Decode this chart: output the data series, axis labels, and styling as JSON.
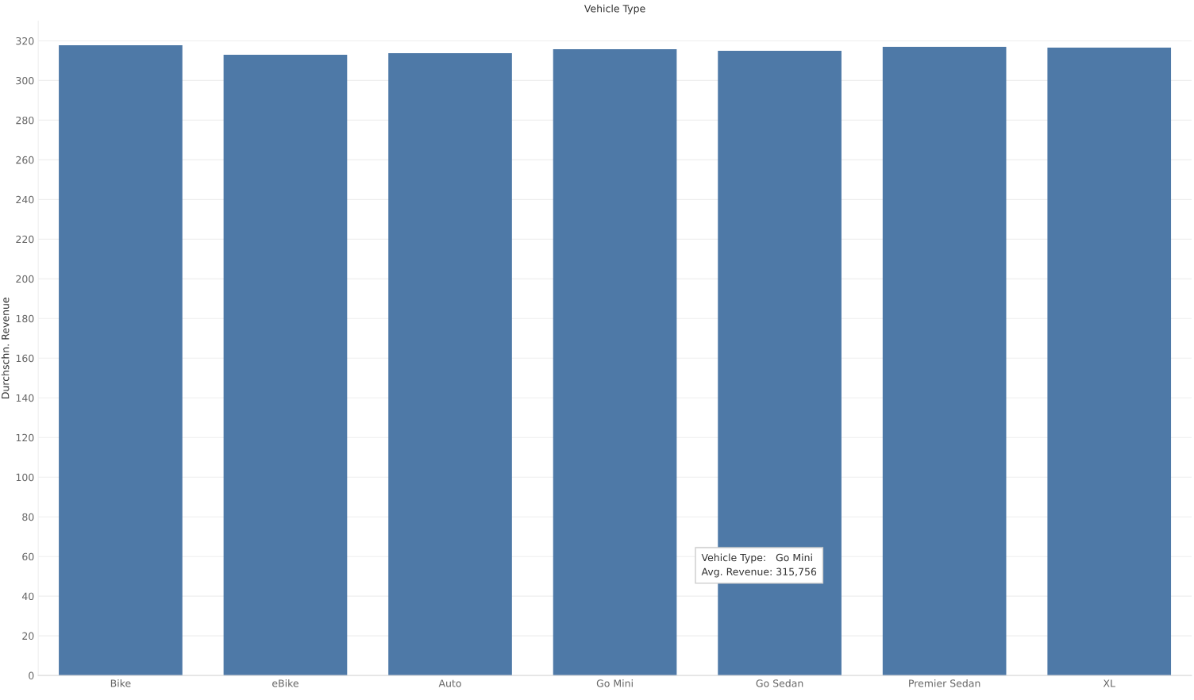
{
  "chart_data": {
    "type": "bar",
    "title": "Vehicle Type",
    "ylabel": "Durchschn. Revenue",
    "categories": [
      "Bike",
      "eBike",
      "Auto",
      "Go Mini",
      "Go Sedan",
      "Premier Sedan",
      "XL"
    ],
    "values": [
      317.8,
      313,
      313.8,
      315.8,
      315,
      317,
      316.6
    ],
    "color": "#4e79a7",
    "ylim": [
      0,
      330
    ],
    "yticks": [
      0,
      20,
      40,
      60,
      80,
      100,
      120,
      140,
      160,
      180,
      200,
      220,
      240,
      260,
      280,
      300,
      320
    ],
    "grid": "y",
    "annotations": [
      "Vehicle Type:   Go Mini\nAvg. Revenue: 315,756"
    ]
  }
}
